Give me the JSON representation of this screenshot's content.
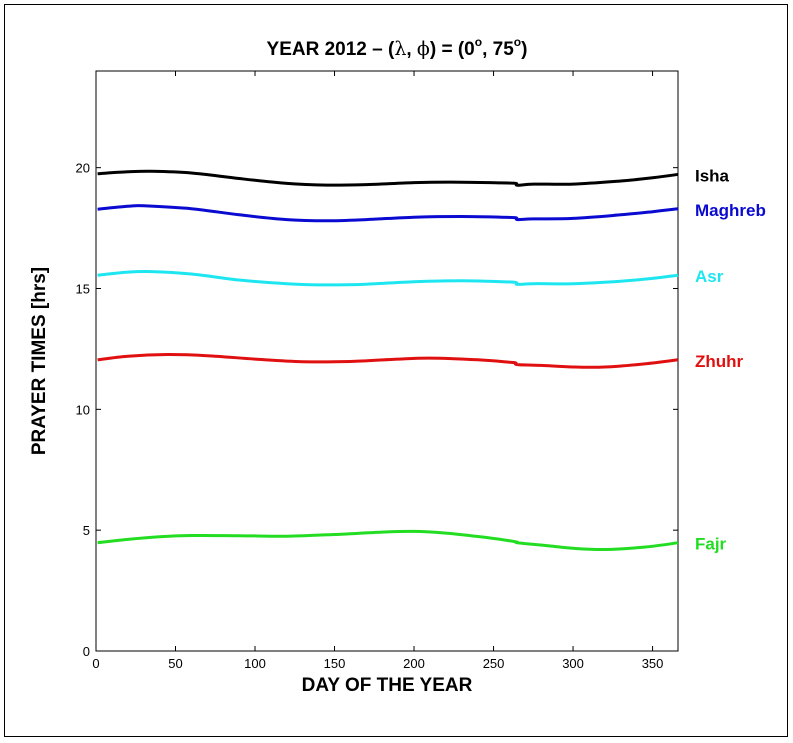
{
  "chart_data": {
    "type": "line",
    "title": "YEAR 2012 – (λ, ϕ) = (0°, 75°)",
    "title_parts": {
      "prefix": "YEAR 2012 – (",
      "lambda": "λ",
      "comma": ", ",
      "phi": "ϕ",
      "mid": ") = (0",
      "deg1": "o",
      "sep": ", 75",
      "deg2": "o",
      "suffix": ")"
    },
    "xlabel": "DAY OF THE YEAR",
    "ylabel": "PRAYER TIMES [hrs]",
    "xlim": [
      0,
      366
    ],
    "ylim": [
      0,
      24
    ],
    "xticks": [
      0,
      50,
      100,
      150,
      200,
      250,
      300,
      350
    ],
    "yticks": [
      0,
      5,
      10,
      15,
      20
    ],
    "grid": false,
    "legend": "right (labels next to line ends)",
    "series": [
      {
        "name": "Isha",
        "color": "#000000",
        "x": [
          1,
          20,
          35,
          60,
          90,
          120,
          145,
          170,
          200,
          230,
          255,
          264,
          265,
          275,
          300,
          330,
          350,
          366
        ],
        "y": [
          19.75,
          19.83,
          19.85,
          19.78,
          19.55,
          19.35,
          19.28,
          19.3,
          19.38,
          19.4,
          19.37,
          19.35,
          19.27,
          19.32,
          19.32,
          19.45,
          19.58,
          19.72
        ]
      },
      {
        "name": "Maghreb",
        "color": "#0a0ad0",
        "x": [
          1,
          20,
          30,
          60,
          90,
          120,
          145,
          170,
          200,
          230,
          255,
          264,
          265,
          275,
          300,
          330,
          350,
          366
        ],
        "y": [
          18.28,
          18.4,
          18.42,
          18.3,
          18.05,
          17.85,
          17.8,
          17.85,
          17.95,
          17.98,
          17.95,
          17.93,
          17.85,
          17.88,
          17.9,
          18.05,
          18.18,
          18.3
        ]
      },
      {
        "name": "Asr",
        "color": "#1ee6f0",
        "x": [
          1,
          20,
          35,
          60,
          90,
          120,
          145,
          170,
          200,
          230,
          255,
          264,
          265,
          275,
          300,
          330,
          350,
          366
        ],
        "y": [
          15.55,
          15.68,
          15.7,
          15.6,
          15.35,
          15.2,
          15.15,
          15.18,
          15.28,
          15.32,
          15.28,
          15.25,
          15.17,
          15.2,
          15.2,
          15.3,
          15.42,
          15.55
        ]
      },
      {
        "name": "Zhuhr",
        "color": "#e01010",
        "x": [
          1,
          20,
          45,
          70,
          100,
          130,
          160,
          190,
          210,
          240,
          260,
          264,
          265,
          280,
          300,
          320,
          345,
          366
        ],
        "y": [
          12.05,
          12.2,
          12.27,
          12.22,
          12.08,
          11.97,
          11.98,
          12.08,
          12.12,
          12.05,
          11.95,
          11.92,
          11.85,
          11.82,
          11.75,
          11.75,
          11.88,
          12.05
        ]
      },
      {
        "name": "Fajr",
        "color": "#22dd22",
        "x": [
          1,
          20,
          40,
          60,
          90,
          120,
          150,
          180,
          200,
          220,
          245,
          264,
          265,
          285,
          300,
          320,
          345,
          366
        ],
        "y": [
          4.48,
          4.62,
          4.73,
          4.78,
          4.77,
          4.75,
          4.82,
          4.92,
          4.95,
          4.88,
          4.7,
          4.52,
          4.48,
          4.35,
          4.25,
          4.2,
          4.3,
          4.48
        ]
      }
    ]
  }
}
